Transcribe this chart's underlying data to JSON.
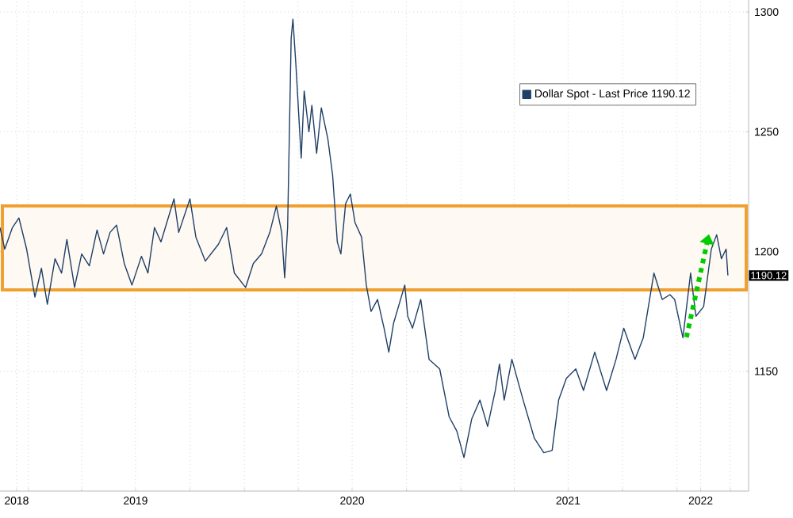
{
  "chart_data": {
    "type": "line",
    "x": [
      "2018-11-14",
      "2018-11-22",
      "2018-12-05",
      "2018-12-16",
      "2018-12-29",
      "2019-01-12",
      "2019-01-23",
      "2019-02-02",
      "2019-02-15",
      "2019-02-26",
      "2019-03-07",
      "2019-03-20",
      "2019-04-01",
      "2019-04-14",
      "2019-04-27",
      "2019-05-08",
      "2019-05-19",
      "2019-05-30",
      "2019-06-12",
      "2019-06-25",
      "2019-07-11",
      "2019-07-22",
      "2019-08-02",
      "2019-08-13",
      "2019-09-04",
      "2019-09-12",
      "2019-10-01",
      "2019-10-11",
      "2019-10-27",
      "2019-11-18",
      "2019-12-02",
      "2019-12-15",
      "2020-01-03",
      "2020-01-16",
      "2020-01-30",
      "2020-02-13",
      "2020-02-24",
      "2020-03-04",
      "2020-03-09",
      "2020-03-14",
      "2020-03-20",
      "2020-03-23",
      "2020-03-28",
      "2020-04-06",
      "2020-04-11",
      "2020-04-19",
      "2020-04-24",
      "2020-05-02",
      "2020-05-10",
      "2020-05-21",
      "2020-05-29",
      "2020-06-06",
      "2020-06-12",
      "2020-06-20",
      "2020-06-28",
      "2020-07-06",
      "2020-07-17",
      "2020-07-25",
      "2020-08-02",
      "2020-08-13",
      "2020-08-24",
      "2020-09-01",
      "2020-09-09",
      "2020-09-28",
      "2020-10-03",
      "2020-10-11",
      "2020-10-25",
      "2020-11-08",
      "2020-11-26",
      "2020-12-12",
      "2020-12-25",
      "2021-01-06",
      "2021-01-19",
      "2021-02-02",
      "2021-02-15",
      "2021-02-28",
      "2021-03-07",
      "2021-03-15",
      "2021-03-28",
      "2021-04-16",
      "2021-05-05",
      "2021-05-21",
      "2021-06-04",
      "2021-06-15",
      "2021-06-28",
      "2021-07-14",
      "2021-07-27",
      "2021-08-15",
      "2021-09-04",
      "2021-09-20",
      "2021-10-03",
      "2021-10-22",
      "2021-11-05",
      "2021-11-23",
      "2021-12-07",
      "2021-12-20",
      "2021-12-28",
      "2022-01-11",
      "2022-01-24",
      "2022-02-02",
      "2022-02-15",
      "2022-02-28",
      "2022-03-09",
      "2022-03-17",
      "2022-03-25",
      "2022-03-28"
    ],
    "series": [
      {
        "name": "Dollar Spot - Last Price 1190.12",
        "color": "#1f3f66",
        "values": [
          1210,
          1201,
          1210,
          1214,
          1201,
          1181,
          1193,
          1178,
          1197,
          1191,
          1205,
          1185,
          1199,
          1194,
          1209,
          1199,
          1208,
          1211,
          1195,
          1186,
          1198,
          1191,
          1210,
          1204,
          1222,
          1208,
          1222,
          1206,
          1196,
          1203,
          1210,
          1191,
          1185,
          1195,
          1199,
          1208,
          1219,
          1208,
          1189,
          1210,
          1289,
          1297,
          1278,
          1239,
          1267,
          1250,
          1261,
          1241,
          1260,
          1247,
          1232,
          1204,
          1199,
          1220,
          1224,
          1212,
          1206,
          1186,
          1175,
          1180,
          1168,
          1158,
          1170,
          1186,
          1173,
          1168,
          1180,
          1155,
          1151,
          1131,
          1125,
          1114,
          1130,
          1138,
          1127,
          1142,
          1153,
          1138,
          1155,
          1138,
          1122,
          1116,
          1117,
          1138,
          1147,
          1151,
          1142,
          1158,
          1142,
          1155,
          1168,
          1155,
          1164,
          1191,
          1180,
          1182,
          1180,
          1164,
          1191,
          1173,
          1177,
          1201,
          1207,
          1197,
          1201,
          1190
        ]
      }
    ],
    "xlim": [
      "2018-11-14",
      "2022-05-02"
    ],
    "ylim": [
      1100,
      1305
    ],
    "yticks": [
      1150,
      1200,
      1250,
      1300
    ],
    "xticks": [
      {
        "value": "2018-12-12",
        "label": "2018"
      },
      {
        "value": "2019-01-01",
        "label": null
      },
      {
        "value": "2019-04-01",
        "label": null
      },
      {
        "value": "2019-07-01",
        "label": "2019"
      },
      {
        "value": "2019-10-01",
        "label": null
      },
      {
        "value": "2020-01-01",
        "label": null
      },
      {
        "value": "2020-04-01",
        "label": null
      },
      {
        "value": "2020-07-01",
        "label": "2020"
      },
      {
        "value": "2020-10-01",
        "label": null
      },
      {
        "value": "2021-01-01",
        "label": null
      },
      {
        "value": "2021-04-01",
        "label": null
      },
      {
        "value": "2021-07-01",
        "label": "2021"
      },
      {
        "value": "2021-10-01",
        "label": null
      },
      {
        "value": "2022-01-01",
        "label": null
      },
      {
        "value": "2022-02-10",
        "label": "2022"
      },
      {
        "value": "2022-04-01",
        "label": null
      }
    ],
    "bands": [
      {
        "axis": "y",
        "from": 1184,
        "to": 1219,
        "color": "#f0a030"
      }
    ],
    "annotations": [
      "1190.12"
    ],
    "grid": true,
    "legend": "top right",
    "line_style": "solid",
    "marker": "none"
  }
}
